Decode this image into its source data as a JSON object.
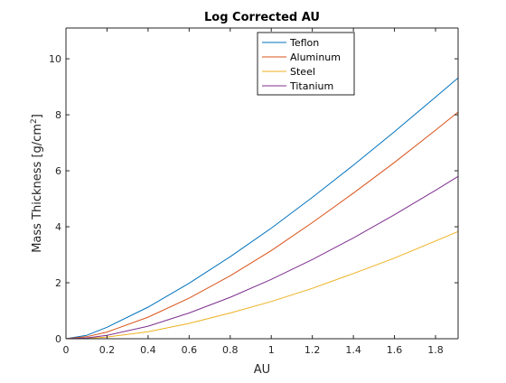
{
  "chart_data": {
    "type": "line",
    "title": "Log Corrected AU",
    "xlabel": "AU",
    "ylabel_main": "Mass Thickness [g/cm",
    "ylabel_superscript": "2",
    "ylabel_close": "]",
    "xlim": [
      0,
      1.91
    ],
    "ylim": [
      0,
      11.1
    ],
    "xticks": [
      0,
      0.2,
      0.4,
      0.6,
      0.8,
      1,
      1.2,
      1.4,
      1.6,
      1.8
    ],
    "xtick_labels": [
      "0",
      "0.2",
      "0.4",
      "0.6",
      "0.8",
      "1",
      "1.2",
      "1.4",
      "1.6",
      "1.8"
    ],
    "yticks": [
      0,
      2,
      4,
      6,
      8,
      10
    ],
    "ytick_labels": [
      "0",
      "2",
      "4",
      "6",
      "8",
      "10"
    ],
    "grid": false,
    "legend_position": "top-right",
    "series": [
      {
        "name": "Teflon",
        "color": "#0072BD",
        "points": [
          [
            0,
            0
          ],
          [
            0.1,
            0.12
          ],
          [
            0.2,
            0.41
          ],
          [
            0.4,
            1.13
          ],
          [
            0.6,
            1.98
          ],
          [
            0.8,
            2.93
          ],
          [
            1.0,
            3.95
          ],
          [
            1.2,
            5.05
          ],
          [
            1.4,
            6.2
          ],
          [
            1.6,
            7.4
          ],
          [
            1.8,
            8.63
          ],
          [
            1.91,
            9.32
          ]
        ]
      },
      {
        "name": "Aluminum",
        "color": "#D95319",
        "points": [
          [
            0,
            0
          ],
          [
            0.1,
            0.07
          ],
          [
            0.2,
            0.24
          ],
          [
            0.4,
            0.77
          ],
          [
            0.6,
            1.45
          ],
          [
            0.8,
            2.25
          ],
          [
            1.0,
            3.15
          ],
          [
            1.2,
            4.15
          ],
          [
            1.4,
            5.2
          ],
          [
            1.6,
            6.3
          ],
          [
            1.8,
            7.45
          ],
          [
            1.91,
            8.1
          ]
        ]
      },
      {
        "name": "Steel",
        "color": "#EDB120",
        "points": [
          [
            0,
            0
          ],
          [
            0.1,
            0.01
          ],
          [
            0.2,
            0.06
          ],
          [
            0.4,
            0.25
          ],
          [
            0.6,
            0.55
          ],
          [
            0.8,
            0.92
          ],
          [
            1.0,
            1.33
          ],
          [
            1.2,
            1.8
          ],
          [
            1.4,
            2.33
          ],
          [
            1.6,
            2.88
          ],
          [
            1.8,
            3.49
          ],
          [
            1.91,
            3.83
          ]
        ]
      },
      {
        "name": "Titanium",
        "color": "#7E2F8E",
        "points": [
          [
            0,
            0
          ],
          [
            0.1,
            0.03
          ],
          [
            0.2,
            0.12
          ],
          [
            0.4,
            0.45
          ],
          [
            0.6,
            0.92
          ],
          [
            0.8,
            1.48
          ],
          [
            1.0,
            2.12
          ],
          [
            1.2,
            2.83
          ],
          [
            1.4,
            3.6
          ],
          [
            1.6,
            4.43
          ],
          [
            1.8,
            5.3
          ],
          [
            1.91,
            5.8
          ]
        ]
      }
    ]
  }
}
